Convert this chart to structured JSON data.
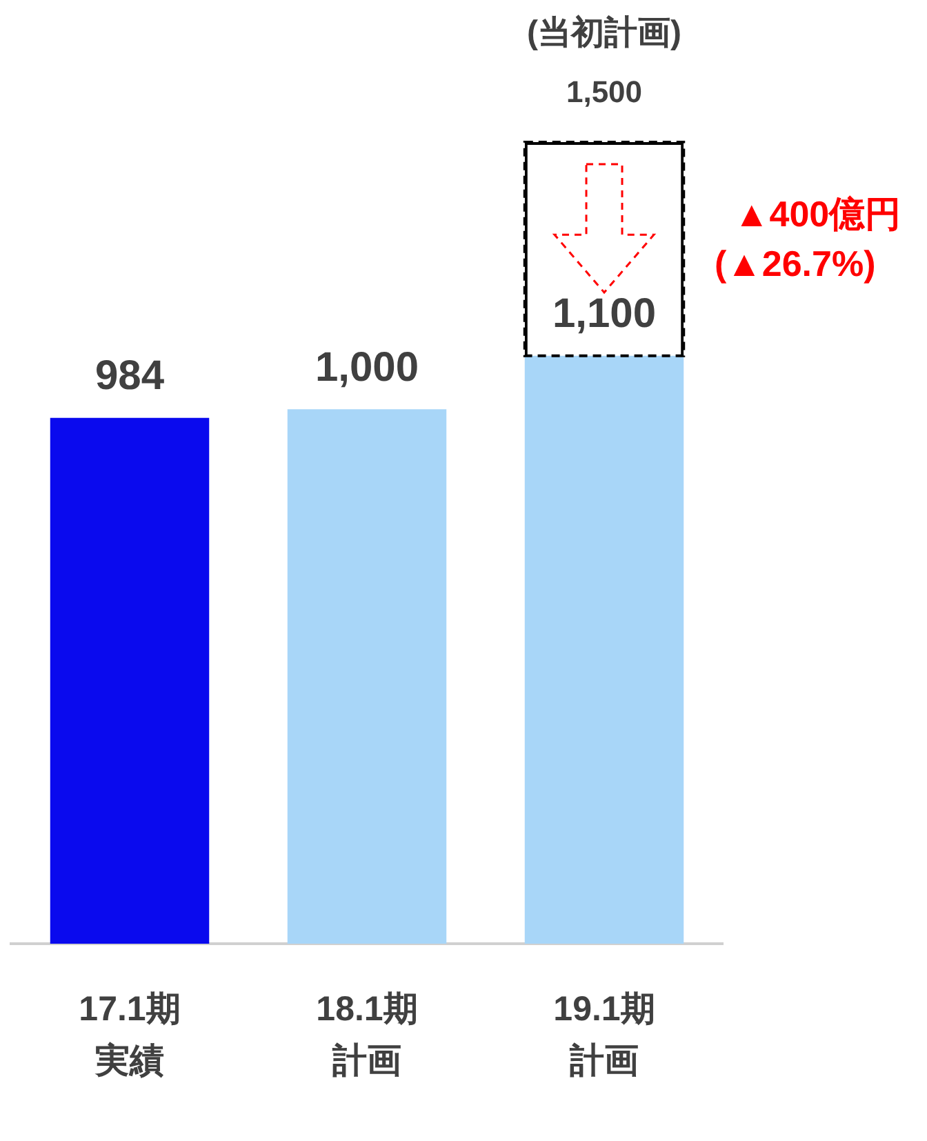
{
  "chart_data": {
    "type": "bar",
    "stacked": true,
    "categories": [
      "17.1期実績",
      "18.1期計画",
      "19.1期計画"
    ],
    "series": [
      {
        "colors": [
          "#0a0aee",
          "#a8d6f8",
          "#a8d6f8"
        ],
        "values": [
          984,
          1000,
          1100
        ],
        "value_labels": [
          "984",
          "1,000",
          "1,100"
        ]
      },
      {
        "color": "#000000",
        "line_style": "dashed",
        "values": [
          null,
          null,
          400
        ]
      }
    ],
    "totals": [
      null,
      null,
      "1,500"
    ],
    "annotations": [
      "(当初計画)",
      "▲400億円\n(▲26.7%)"
    ],
    "grid": false,
    "legend": false
  }
}
